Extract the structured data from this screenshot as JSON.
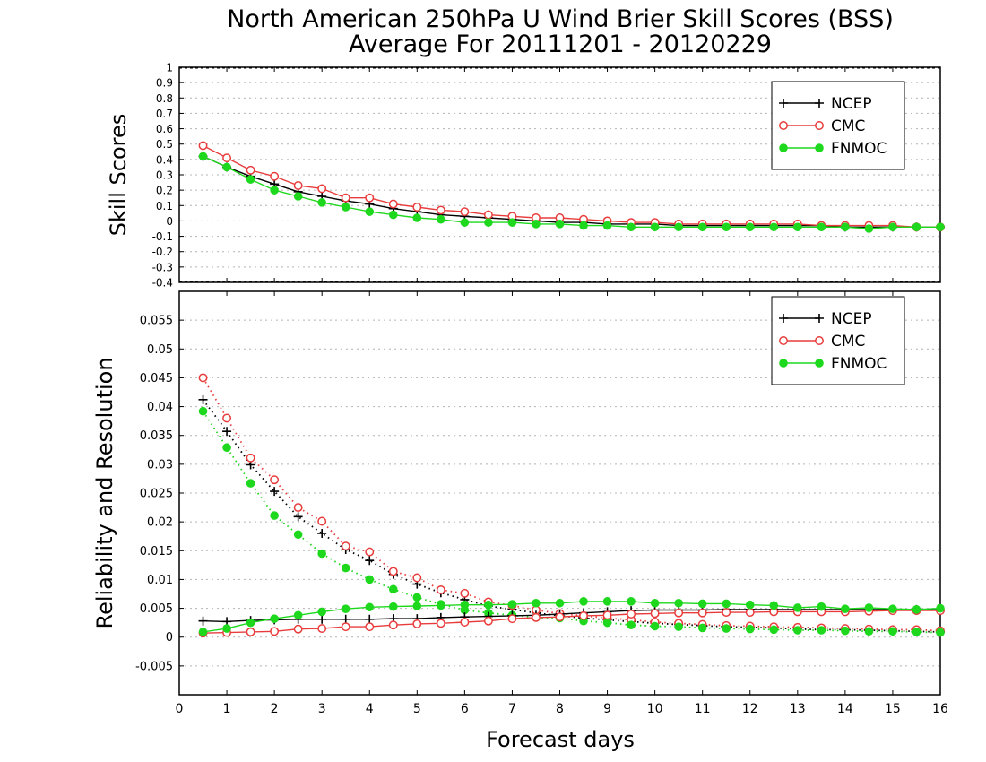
{
  "title": "North American 250hPa U Wind Brier Skill Scores (BSS)",
  "subtitle": "Average For 20111201 - 20120229",
  "xlabel": "Forecast days",
  "colors": {
    "NCEP": "#000000",
    "CMC": "#e83c3c",
    "FNMOC": "#1ed81e",
    "grid": "#b4b4b4"
  },
  "chart_data": [
    {
      "type": "line",
      "ylabel": "Skill Scores",
      "xlim": [
        0,
        16
      ],
      "ylim": [
        -0.4,
        1
      ],
      "xticks": [
        0,
        1,
        2,
        3,
        4,
        5,
        6,
        7,
        8,
        9,
        10,
        11,
        12,
        13,
        14,
        15,
        16
      ],
      "yticks": [
        -0.4,
        -0.3,
        -0.2,
        -0.1,
        0,
        0.1,
        0.2,
        0.3,
        0.4,
        0.5,
        0.6,
        0.7,
        0.8,
        0.9,
        1
      ],
      "ytick_labels": [
        "-0.4",
        "-0.3",
        "-0.2",
        "-0.1",
        "0",
        "0.1",
        "0.2",
        "0.3",
        "0.4",
        "0.5",
        "0.6",
        "0.7",
        "0.8",
        "0.9",
        "1"
      ],
      "grid": true,
      "legend": "top-right",
      "x": [
        0.5,
        1,
        1.5,
        2,
        2.5,
        3,
        3.5,
        4,
        4.5,
        5,
        5.5,
        6,
        6.5,
        7,
        7.5,
        8,
        8.5,
        9,
        9.5,
        10,
        10.5,
        11,
        11.5,
        12,
        12.5,
        13,
        13.5,
        14,
        14.5,
        15,
        15.5,
        16
      ],
      "series": [
        {
          "name": "NCEP",
          "marker": "plus",
          "dash": "solid",
          "values": [
            0.42,
            0.35,
            0.29,
            0.24,
            0.19,
            0.16,
            0.13,
            0.11,
            0.08,
            0.06,
            0.04,
            0.03,
            0.02,
            0.01,
            0.0,
            -0.01,
            -0.01,
            -0.02,
            -0.02,
            -0.02,
            -0.03,
            -0.03,
            -0.03,
            -0.03,
            -0.03,
            -0.03,
            -0.03,
            -0.04,
            -0.04,
            -0.04,
            -0.04,
            -0.04
          ]
        },
        {
          "name": "CMC",
          "marker": "open-circle",
          "dash": "solid",
          "values": [
            0.49,
            0.41,
            0.33,
            0.29,
            0.23,
            0.21,
            0.15,
            0.15,
            0.11,
            0.09,
            0.07,
            0.06,
            0.04,
            0.03,
            0.02,
            0.02,
            0.01,
            0.0,
            -0.01,
            -0.01,
            -0.02,
            -0.02,
            -0.02,
            -0.02,
            -0.02,
            -0.02,
            -0.03,
            -0.03,
            -0.03,
            -0.03,
            -0.04,
            -0.04
          ]
        },
        {
          "name": "FNMOC",
          "marker": "filled-circle",
          "dash": "solid",
          "values": [
            0.42,
            0.35,
            0.27,
            0.2,
            0.16,
            0.12,
            0.09,
            0.06,
            0.04,
            0.02,
            0.01,
            -0.01,
            -0.01,
            -0.01,
            -0.02,
            -0.02,
            -0.03,
            -0.03,
            -0.04,
            -0.04,
            -0.04,
            -0.04,
            -0.04,
            -0.04,
            -0.04,
            -0.04,
            -0.04,
            -0.04,
            -0.05,
            -0.04,
            -0.04,
            -0.04
          ]
        }
      ]
    },
    {
      "type": "line",
      "ylabel": "Reliability and Resolution",
      "xlim": [
        0,
        16
      ],
      "ylim": [
        -0.01,
        0.06
      ],
      "xticks": [
        0,
        1,
        2,
        3,
        4,
        5,
        6,
        7,
        8,
        9,
        10,
        11,
        12,
        13,
        14,
        15,
        16
      ],
      "yticks": [
        -0.005,
        0,
        0.005,
        0.01,
        0.015,
        0.02,
        0.025,
        0.03,
        0.035,
        0.04,
        0.045,
        0.05,
        0.055
      ],
      "ytick_labels": [
        "-0.005",
        "0",
        "0.005",
        "0.01",
        "0.015",
        "0.02",
        "0.025",
        "0.03",
        "0.035",
        "0.04",
        "0.045",
        "0.05",
        "0.055"
      ],
      "grid": true,
      "legend": "top-right",
      "x": [
        0.5,
        1,
        1.5,
        2,
        2.5,
        3,
        3.5,
        4,
        4.5,
        5,
        5.5,
        6,
        6.5,
        7,
        7.5,
        8,
        8.5,
        9,
        9.5,
        10,
        10.5,
        11,
        11.5,
        12,
        12.5,
        13,
        13.5,
        14,
        14.5,
        15,
        15.5,
        16
      ],
      "series": [
        {
          "name": "NCEP",
          "marker": "plus",
          "dash": "solid",
          "values": [
            0.0028,
            0.0027,
            0.0029,
            0.003,
            0.0031,
            0.0031,
            0.0031,
            0.0031,
            0.0032,
            0.0032,
            0.0034,
            0.0035,
            0.0036,
            0.0037,
            0.0038,
            0.004,
            0.0042,
            0.0044,
            0.0046,
            0.0047,
            0.0047,
            0.0047,
            0.0048,
            0.0048,
            0.0048,
            0.0048,
            0.0048,
            0.0048,
            0.0048,
            0.0048,
            0.0048,
            0.0047
          ]
        },
        {
          "name": "CMC",
          "marker": "open-circle",
          "dash": "solid",
          "values": [
            0.0007,
            0.0008,
            0.0009,
            0.001,
            0.0014,
            0.0015,
            0.0018,
            0.0018,
            0.0021,
            0.0023,
            0.0024,
            0.0026,
            0.0028,
            0.0032,
            0.0034,
            0.0035,
            0.0037,
            0.0038,
            0.004,
            0.0041,
            0.0042,
            0.0042,
            0.0043,
            0.0043,
            0.0044,
            0.0044,
            0.0044,
            0.0044,
            0.0045,
            0.0046,
            0.0046,
            0.0046
          ]
        },
        {
          "name": "FNMOC",
          "marker": "filled-circle",
          "dash": "solid",
          "values": [
            0.0009,
            0.0015,
            0.0025,
            0.0032,
            0.0038,
            0.0044,
            0.0049,
            0.0052,
            0.0053,
            0.0054,
            0.0055,
            0.0056,
            0.0056,
            0.0057,
            0.0059,
            0.0059,
            0.0062,
            0.0062,
            0.0062,
            0.0059,
            0.0059,
            0.0058,
            0.0058,
            0.0056,
            0.0055,
            0.0051,
            0.0053,
            0.0049,
            0.0051,
            0.0049,
            0.0048,
            0.005
          ]
        },
        {
          "name": "NCEP",
          "marker": "plus",
          "dash": "dotted",
          "values": [
            0.0412,
            0.0357,
            0.0299,
            0.0253,
            0.0209,
            0.018,
            0.0152,
            0.0133,
            0.0109,
            0.0092,
            0.0077,
            0.0065,
            0.0054,
            0.0048,
            0.0042,
            0.0037,
            0.0033,
            0.003,
            0.0027,
            0.0024,
            0.0022,
            0.002,
            0.0018,
            0.0017,
            0.0016,
            0.0014,
            0.0013,
            0.0013,
            0.0012,
            0.0011,
            0.001,
            0.0009
          ]
        },
        {
          "name": "CMC",
          "marker": "open-circle",
          "dash": "dotted",
          "values": [
            0.045,
            0.038,
            0.0311,
            0.0273,
            0.0225,
            0.0201,
            0.0158,
            0.0148,
            0.0114,
            0.0103,
            0.0082,
            0.0076,
            0.0061,
            0.0055,
            0.0047,
            0.0041,
            0.0037,
            0.0033,
            0.003,
            0.0026,
            0.0024,
            0.0022,
            0.002,
            0.0019,
            0.0018,
            0.0017,
            0.0016,
            0.0015,
            0.0014,
            0.0013,
            0.0013,
            0.0011
          ]
        },
        {
          "name": "FNMOC",
          "marker": "filled-circle",
          "dash": "dotted",
          "values": [
            0.0392,
            0.0329,
            0.0267,
            0.0211,
            0.0178,
            0.0145,
            0.012,
            0.01,
            0.0083,
            0.0069,
            0.0057,
            0.0047,
            0.0042,
            0.0038,
            0.0034,
            0.0033,
            0.0028,
            0.0025,
            0.0021,
            0.0019,
            0.0018,
            0.0016,
            0.0015,
            0.0014,
            0.0013,
            0.0012,
            0.0012,
            0.0011,
            0.001,
            0.001,
            0.0009,
            0.0008
          ]
        }
      ]
    }
  ]
}
